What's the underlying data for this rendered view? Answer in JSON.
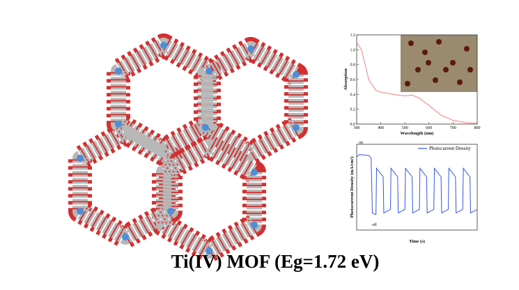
{
  "title": "Ti(IV) MOF (Eg=1.72 eV)",
  "chart_data": [
    {
      "type": "line",
      "xlabel": "Wavelength (nm)",
      "ylabel": "Absorption",
      "x": [
        300,
        320,
        350,
        380,
        400,
        450,
        500,
        530,
        560,
        600,
        650,
        700,
        750,
        800
      ],
      "values": [
        1.1,
        1.0,
        0.6,
        0.45,
        0.43,
        0.4,
        0.38,
        0.39,
        0.35,
        0.25,
        0.12,
        0.05,
        0.02,
        0.01
      ],
      "color": "#f08080",
      "xlim": [
        300,
        800
      ],
      "xticks": [
        300,
        400,
        500,
        600,
        700,
        800
      ],
      "ylim": [
        0,
        1.2
      ],
      "yticks": [
        {
          "value": 0,
          "label": "0.0"
        },
        0.2,
        0.4,
        0.6,
        0.8,
        {
          "value": 1,
          "label": "1.0"
        },
        1.2
      ]
    },
    {
      "type": "line",
      "xlabel": "Time (s)",
      "ylabel": "Photocurrent Density (mA/cm²)",
      "legend": "Photocurrent Density",
      "color": "#3355dd",
      "annotations": [
        "on",
        "off"
      ],
      "x": [
        0,
        2,
        10,
        12,
        13,
        16,
        16.5,
        22,
        22.5,
        28,
        28.5,
        34,
        34.5,
        40,
        40.5,
        46,
        46.5,
        52,
        52.5,
        58,
        58.5,
        64,
        64.5,
        70,
        70.5,
        76,
        76.5,
        82,
        82.5,
        88,
        88.5,
        94,
        94.5,
        100
      ],
      "values": [
        85,
        88,
        87,
        84,
        20,
        18,
        72,
        62,
        20,
        24,
        72,
        62,
        20,
        24,
        72,
        62,
        20,
        24,
        72,
        62,
        20,
        24,
        72,
        62,
        20,
        24,
        72,
        62,
        20,
        24,
        72,
        62,
        20,
        24
      ],
      "xlim": [
        0,
        100
      ],
      "ylim": [
        0,
        100
      ]
    }
  ]
}
